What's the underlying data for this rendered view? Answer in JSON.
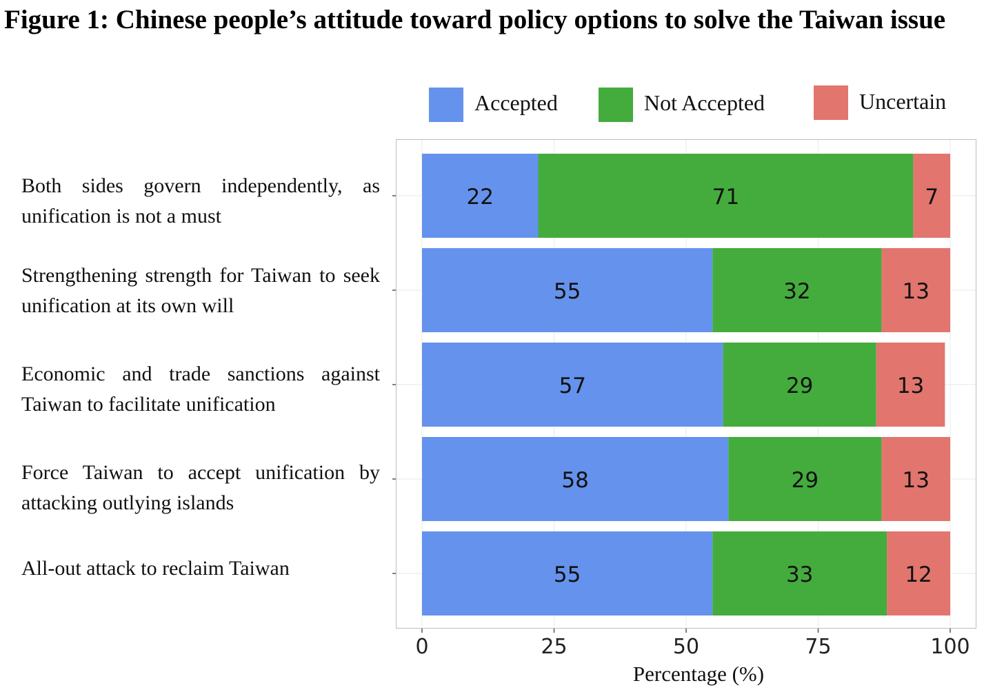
{
  "chart_data": {
    "type": "bar",
    "orientation": "horizontal",
    "stacked": true,
    "title": "Figure 1: Chinese people’s attitude toward policy options to solve the Taiwan issue",
    "xlabel": "Percentage (%)",
    "ylabel": "",
    "xlim": [
      0,
      100
    ],
    "xticks": [
      "0",
      "25",
      "50",
      "75",
      "100"
    ],
    "grid": true,
    "legend_position": "top",
    "categories": [
      "Both sides govern independently, as unification is not a must",
      "Strengthening strength for Taiwan to seek unification at its own will",
      "Economic and trade sanctions against Taiwan to facilitate unification",
      "Force Taiwan to accept unification by attacking outlying islands",
      "All-out attack to reclaim Taiwan"
    ],
    "series": [
      {
        "name": "Accepted",
        "color": "#6592ec",
        "values": [
          22,
          55,
          57,
          58,
          55
        ]
      },
      {
        "name": "Not Accepted",
        "color": "#44ac3d",
        "values": [
          71,
          32,
          29,
          29,
          33
        ]
      },
      {
        "name": "Uncertain",
        "color": "#e2756e",
        "values": [
          7,
          13,
          13,
          13,
          12
        ]
      }
    ]
  }
}
